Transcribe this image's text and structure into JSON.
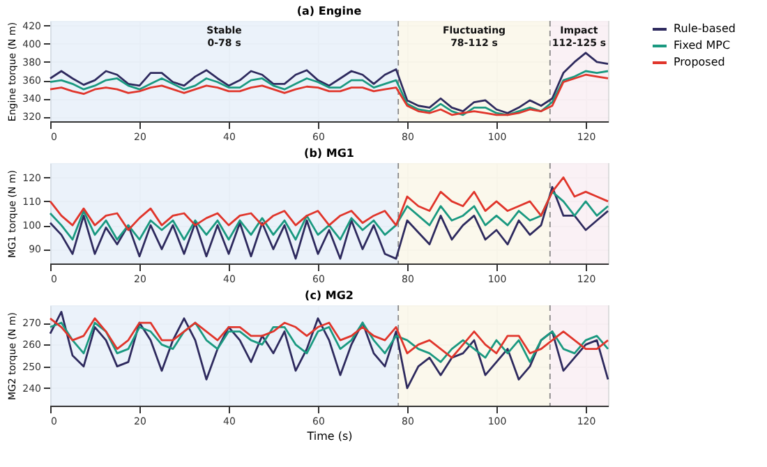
{
  "chart_data": [
    {
      "type": "line",
      "title": "(a) Engine",
      "ylabel": "Engine torque (N m)",
      "x": [
        0,
        2.5,
        5,
        7.5,
        10,
        12.5,
        15,
        17.5,
        20,
        22.5,
        25,
        27.5,
        30,
        32.5,
        35,
        37.5,
        40,
        42.5,
        45,
        47.5,
        50,
        52.5,
        55,
        57.5,
        60,
        62.5,
        65,
        67.5,
        70,
        72.5,
        75,
        77.5,
        80,
        82.5,
        85,
        87.5,
        90,
        92.5,
        95,
        97.5,
        100,
        102.5,
        105,
        107.5,
        110,
        112.5,
        115,
        117.5,
        120,
        122.5,
        125
      ],
      "series": [
        {
          "name": "Rule-based",
          "color": "#2e2a5e",
          "values": [
            362,
            370,
            362,
            355,
            360,
            370,
            366,
            356,
            354,
            368,
            368,
            358,
            354,
            364,
            371,
            362,
            354,
            360,
            370,
            366,
            356,
            356,
            366,
            371,
            360,
            354,
            362,
            370,
            366,
            356,
            366,
            372,
            338,
            332,
            330,
            340,
            330,
            326,
            336,
            338,
            328,
            324,
            330,
            338,
            332,
            340,
            368,
            380,
            390,
            380,
            378
          ]
        },
        {
          "name": "Fixed MPC",
          "color": "#1a9980",
          "values": [
            358,
            360,
            356,
            350,
            354,
            360,
            362,
            354,
            350,
            356,
            362,
            356,
            350,
            354,
            362,
            358,
            352,
            352,
            360,
            362,
            354,
            350,
            356,
            362,
            358,
            352,
            352,
            360,
            360,
            352,
            356,
            360,
            334,
            328,
            326,
            334,
            326,
            322,
            330,
            330,
            324,
            322,
            326,
            330,
            326,
            336,
            360,
            364,
            370,
            368,
            370
          ]
        },
        {
          "name": "Proposed",
          "color": "#e0352b",
          "values": [
            350,
            352,
            348,
            345,
            350,
            352,
            350,
            346,
            348,
            352,
            354,
            350,
            346,
            350,
            354,
            352,
            348,
            348,
            352,
            354,
            350,
            346,
            350,
            353,
            352,
            348,
            348,
            352,
            352,
            348,
            350,
            352,
            332,
            326,
            324,
            328,
            322,
            324,
            326,
            324,
            322,
            322,
            324,
            328,
            326,
            332,
            358,
            362,
            366,
            364,
            362
          ]
        }
      ],
      "xlim": [
        0,
        125
      ],
      "xticks": [
        0,
        20,
        40,
        60,
        80,
        100,
        120
      ],
      "ylim": [
        315,
        425
      ],
      "yticks": [
        320,
        340,
        360,
        380,
        400,
        420
      ],
      "bands": [
        {
          "axis": "x",
          "from": 0,
          "to": 78,
          "label": "Stable\n0-78 s",
          "color": "#e9f1f9"
        },
        {
          "axis": "x",
          "from": 78,
          "to": 112,
          "label": "Fluctuating\n78-112 s",
          "color": "#fbf7ea"
        },
        {
          "axis": "x",
          "from": 112,
          "to": 125,
          "label": "Impact\n112-125 s",
          "color": "#f9eff4"
        }
      ],
      "ref_lines": [
        {
          "axis": "x",
          "value": 78,
          "color": "#888888",
          "line_style": "dashed"
        },
        {
          "axis": "x",
          "value": 112,
          "color": "#888888",
          "line_style": "dashed"
        }
      ],
      "grid": true,
      "legend": "right",
      "line_style": "solid"
    },
    {
      "type": "line",
      "title": "(b) MG1",
      "ylabel": "MG1 torque (N m)",
      "x": [
        0,
        2.5,
        5,
        7.5,
        10,
        12.5,
        15,
        17.5,
        20,
        22.5,
        25,
        27.5,
        30,
        32.5,
        35,
        37.5,
        40,
        42.5,
        45,
        47.5,
        50,
        52.5,
        55,
        57.5,
        60,
        62.5,
        65,
        67.5,
        70,
        72.5,
        75,
        77.5,
        80,
        82.5,
        85,
        87.5,
        90,
        92.5,
        95,
        97.5,
        100,
        102.5,
        105,
        107.5,
        110,
        112.5,
        115,
        117.5,
        120,
        122.5,
        125
      ],
      "series": [
        {
          "color": "#2e2a5e",
          "values": [
            101,
            96,
            88,
            104,
            88,
            99,
            92,
            100,
            87,
            100,
            90,
            100,
            88,
            101,
            87,
            100,
            88,
            101,
            87,
            101,
            90,
            100,
            86,
            102,
            88,
            98,
            86,
            102,
            90,
            100,
            88,
            86,
            102,
            97,
            92,
            104,
            94,
            100,
            104,
            94,
            98,
            92,
            102,
            96,
            100,
            116,
            104,
            104,
            98,
            102,
            106
          ]
        },
        {
          "color": "#1a9980",
          "values": [
            105,
            100,
            94,
            106,
            96,
            102,
            94,
            100,
            94,
            102,
            98,
            102,
            94,
            102,
            96,
            102,
            94,
            102,
            96,
            103,
            96,
            102,
            94,
            104,
            96,
            100,
            94,
            103,
            98,
            102,
            96,
            100,
            108,
            104,
            100,
            108,
            102,
            104,
            108,
            100,
            104,
            100,
            106,
            102,
            104,
            114,
            110,
            104,
            110,
            104,
            108
          ]
        },
        {
          "color": "#e0352b",
          "values": [
            110,
            104,
            100,
            107,
            100,
            104,
            105,
            98,
            103,
            107,
            100,
            104,
            105,
            100,
            103,
            105,
            100,
            104,
            105,
            100,
            104,
            106,
            100,
            104,
            106,
            100,
            104,
            106,
            101,
            104,
            106,
            100,
            112,
            108,
            106,
            114,
            110,
            108,
            114,
            106,
            110,
            106,
            108,
            110,
            104,
            114,
            120,
            112,
            114,
            112,
            110
          ]
        }
      ],
      "xlim": [
        0,
        125
      ],
      "xticks": [
        0,
        20,
        40,
        60,
        80,
        100,
        120
      ],
      "ylim": [
        84,
        126
      ],
      "yticks": [
        90,
        100,
        110,
        120
      ],
      "bands": [
        {
          "axis": "x",
          "from": 0,
          "to": 78,
          "color": "#e9f1f9"
        },
        {
          "axis": "x",
          "from": 78,
          "to": 112,
          "color": "#fbf7ea"
        },
        {
          "axis": "x",
          "from": 112,
          "to": 125,
          "color": "#f9eff4"
        }
      ],
      "ref_lines": [
        {
          "axis": "x",
          "value": 78,
          "color": "#888888",
          "line_style": "dashed"
        },
        {
          "axis": "x",
          "value": 112,
          "color": "#888888",
          "line_style": "dashed"
        }
      ],
      "grid": true,
      "legend": false,
      "line_style": "solid"
    },
    {
      "type": "line",
      "title": "(c) MG2",
      "ylabel": "MG2 torque (N m)",
      "xlabel": "Time (s)",
      "x": [
        0,
        2.5,
        5,
        7.5,
        10,
        12.5,
        15,
        17.5,
        20,
        22.5,
        25,
        27.5,
        30,
        32.5,
        35,
        37.5,
        40,
        42.5,
        45,
        47.5,
        50,
        52.5,
        55,
        57.5,
        60,
        62.5,
        65,
        67.5,
        70,
        72.5,
        75,
        77.5,
        80,
        82.5,
        85,
        87.5,
        90,
        92.5,
        95,
        97.5,
        100,
        102.5,
        105,
        107.5,
        110,
        112.5,
        115,
        117.5,
        120,
        122.5,
        125
      ],
      "series": [
        {
          "color": "#2e2a5e",
          "values": [
            265,
            275,
            255,
            250,
            268,
            262,
            250,
            252,
            270,
            262,
            248,
            262,
            272,
            262,
            244,
            258,
            268,
            262,
            252,
            264,
            256,
            266,
            248,
            258,
            272,
            262,
            246,
            260,
            270,
            256,
            250,
            266,
            240,
            250,
            254,
            246,
            254,
            256,
            262,
            246,
            252,
            258,
            244,
            250,
            262,
            266,
            248,
            254,
            260,
            262,
            244
          ]
        },
        {
          "color": "#1a9980",
          "values": [
            268,
            270,
            262,
            256,
            270,
            266,
            256,
            258,
            268,
            266,
            260,
            258,
            266,
            270,
            262,
            258,
            266,
            266,
            262,
            260,
            268,
            268,
            260,
            256,
            266,
            268,
            258,
            262,
            270,
            262,
            256,
            264,
            262,
            258,
            256,
            252,
            258,
            262,
            258,
            254,
            262,
            256,
            262,
            252,
            262,
            266,
            258,
            256,
            262,
            264,
            258
          ]
        },
        {
          "color": "#e0352b",
          "values": [
            272,
            268,
            262,
            264,
            272,
            266,
            258,
            262,
            270,
            270,
            262,
            262,
            266,
            270,
            266,
            262,
            268,
            268,
            264,
            264,
            266,
            270,
            268,
            264,
            268,
            270,
            262,
            264,
            268,
            264,
            262,
            268,
            256,
            260,
            262,
            258,
            254,
            260,
            266,
            260,
            256,
            264,
            264,
            256,
            258,
            262,
            266,
            262,
            258,
            258,
            262
          ]
        }
      ],
      "xlim": [
        0,
        125
      ],
      "xticks": [
        0,
        20,
        40,
        60,
        80,
        100,
        120
      ],
      "ylim": [
        232,
        278
      ],
      "yticks": [
        240,
        250,
        260,
        270
      ],
      "bands": [
        {
          "axis": "x",
          "from": 0,
          "to": 78,
          "color": "#e9f1f9"
        },
        {
          "axis": "x",
          "from": 78,
          "to": 112,
          "color": "#fbf7ea"
        },
        {
          "axis": "x",
          "from": 112,
          "to": 125,
          "color": "#f9eff4"
        }
      ],
      "ref_lines": [
        {
          "axis": "x",
          "value": 78,
          "color": "#888888",
          "line_style": "dashed"
        },
        {
          "axis": "x",
          "value": 112,
          "color": "#888888",
          "line_style": "dashed"
        }
      ],
      "grid": true,
      "legend": false,
      "line_style": "solid"
    }
  ]
}
